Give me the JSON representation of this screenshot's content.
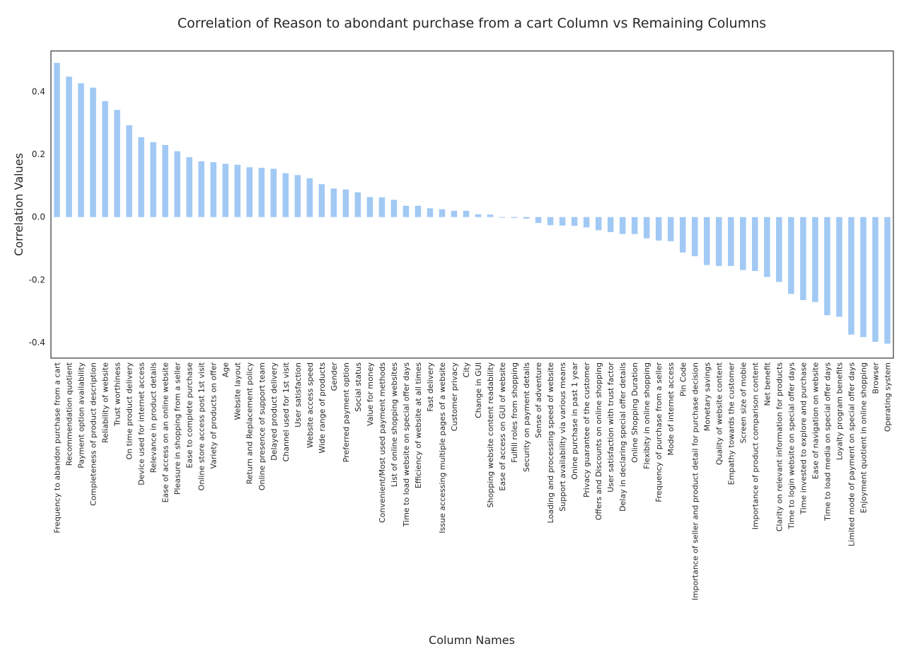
{
  "chart_data": {
    "type": "bar",
    "title": "Correlation of Reason to abondant purchase from a cart Column vs Remaining Columns",
    "xlabel": "Column Names",
    "ylabel": "Correlation Values",
    "ylim": [
      -0.45,
      0.53
    ],
    "yticks": [
      -0.4,
      -0.2,
      0.0,
      0.2,
      0.4
    ],
    "ytick_labels": [
      "-0.4",
      "-0.2",
      "0.0",
      "0.2",
      "0.4"
    ],
    "grid": false,
    "bar_color": "#a1c9f4",
    "categories": [
      "Frequency to abandon purchase from a cart",
      "Recommendation quotient",
      "Payment option availability",
      "Completeness of product description",
      "Reliability of website",
      "Trust worthiness",
      "On time product delivery",
      "Device used for internet access",
      "Relevance in product details",
      "Ease of access on an online website",
      "Pleasure in shopping from a seller",
      "Ease to complete purchase",
      "Online store access post 1st visit",
      "Variety of products on offer",
      "Age",
      "Website layout",
      "Return and Replacement policy",
      "Online presence of support team",
      "Delayed product delivery",
      "Channel used for 1st visit",
      "User satisfaction",
      "Website access speed",
      "Wide range of products",
      "Gender",
      "Preferred payment option",
      "Social status",
      "Value for money",
      "Convenient/Most used payment methods",
      "List of online shopping websites",
      "Time to load website on special offer days",
      "Efficiency of website at all times",
      "Fast delivery",
      "Issue accessing multiple pages of a website",
      "Customer privacy",
      "City",
      "Change in GUI",
      "Shopping website content readability",
      "Ease of access on GUI of website",
      "Fulfill roles from shopping",
      "Security on payment details",
      "Sense of adventure",
      "Loading and processing speed of website",
      "Support availability via various means",
      "Onine purchase in past 1 year",
      "Privacy guarantee of the customer",
      "Offers and Discounts on online shopping",
      "User satisfaction with trust factor",
      "Delay in declaring special offer details",
      "Online Shopping Duration",
      "Flexibity in online shopping",
      "Frequency of purchase from a seller",
      "Mode of internet access",
      "Pin Code",
      "Importance of seller and product detail for purchase decision",
      "Monetary savings",
      "Quality of website content",
      "Empathy towards the customer",
      "Screen size of mobie",
      "Importance of product comparison content",
      "Net benefit",
      "Clarity on relevant information for products",
      "Time to login website on special offer days",
      "Time invested to explore and purchase",
      "Ease of navigation on website",
      "Time to load media on special offer days",
      "Loyalty program benefits",
      "Limited mode of payment on special offer days",
      "Enjoyment quotient in online shopping",
      "Browser",
      "Operating system"
    ],
    "values": [
      0.492,
      0.448,
      0.427,
      0.413,
      0.37,
      0.342,
      0.293,
      0.255,
      0.239,
      0.23,
      0.21,
      0.191,
      0.178,
      0.175,
      0.17,
      0.167,
      0.159,
      0.157,
      0.154,
      0.14,
      0.134,
      0.124,
      0.105,
      0.091,
      0.088,
      0.079,
      0.064,
      0.063,
      0.055,
      0.036,
      0.036,
      0.028,
      0.025,
      0.02,
      0.02,
      0.009,
      0.008,
      -0.002,
      -0.003,
      -0.005,
      -0.019,
      -0.026,
      -0.027,
      -0.028,
      -0.033,
      -0.042,
      -0.048,
      -0.054,
      -0.054,
      -0.068,
      -0.075,
      -0.077,
      -0.113,
      -0.125,
      -0.153,
      -0.156,
      -0.156,
      -0.169,
      -0.172,
      -0.191,
      -0.207,
      -0.245,
      -0.265,
      -0.271,
      -0.313,
      -0.318,
      -0.375,
      -0.383,
      -0.398,
      -0.404
    ]
  }
}
